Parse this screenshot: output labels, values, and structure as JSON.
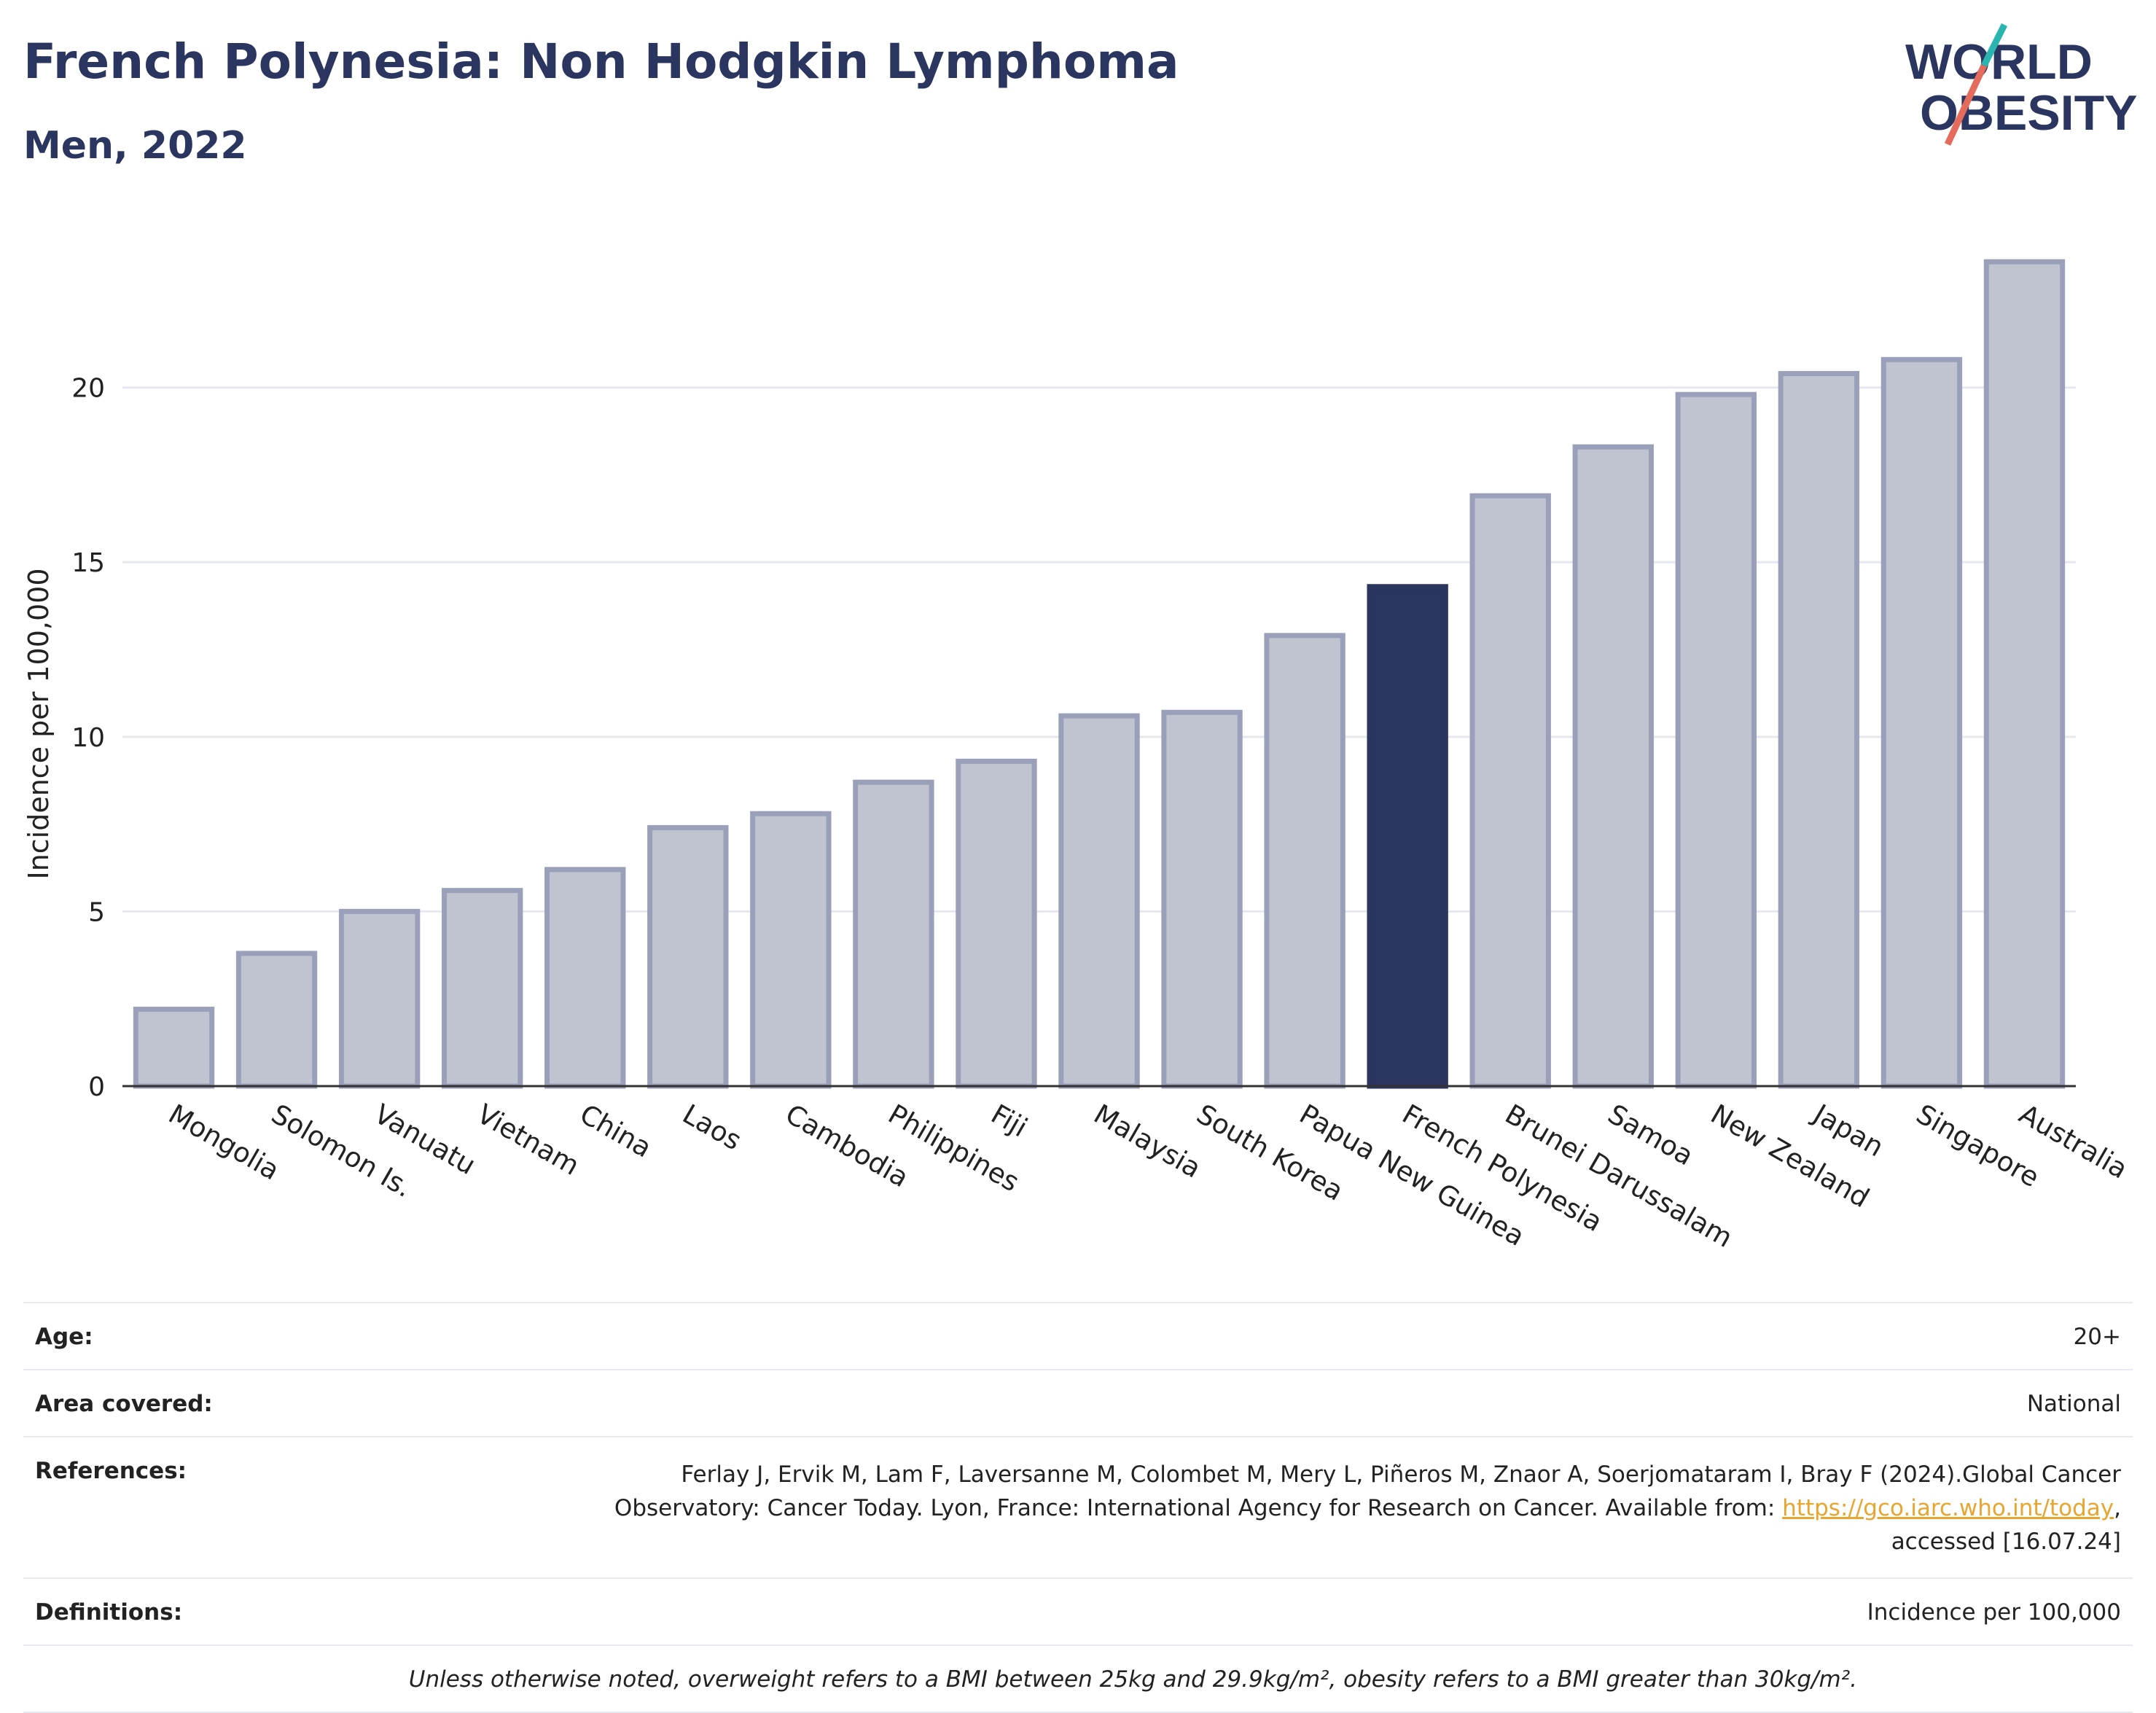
{
  "header": {
    "title": "French Polynesia: Non Hodgkin Lymphoma",
    "subtitle": "Men, 2022"
  },
  "logo": {
    "line1": "WORLD",
    "line2": "OBESITY",
    "icon": "world-obesity-logo"
  },
  "colors": {
    "bar": "#c0c4d1",
    "bar_border": "#9aa0b9",
    "highlight": "#2a3560",
    "grid": "#e6e8ef",
    "link": "#e8a530"
  },
  "chart_data": {
    "type": "bar",
    "ylabel": "Incidence per 100,000",
    "xlabel": "",
    "ylim": [
      0,
      24.5
    ],
    "yticks": [
      0,
      5,
      10,
      15,
      20
    ],
    "grid": true,
    "highlight": "French Polynesia",
    "categories": [
      "Mongolia",
      "Solomon Is.",
      "Vanuatu",
      "Vietnam",
      "China",
      "Laos",
      "Cambodia",
      "Philippines",
      "Fiji",
      "Malaysia",
      "South Korea",
      "Papua New Guinea",
      "French Polynesia",
      "Brunei Darussalam",
      "Samoa",
      "New Zealand",
      "Japan",
      "Singapore",
      "Australia"
    ],
    "values": [
      2.2,
      3.8,
      5.0,
      5.6,
      6.2,
      7.4,
      7.8,
      8.7,
      9.3,
      10.6,
      10.7,
      12.9,
      14.3,
      16.9,
      18.3,
      19.8,
      20.4,
      20.8,
      23.6
    ]
  },
  "info": {
    "age_label": "Age:",
    "age_value": "20+",
    "area_label": "Area covered:",
    "area_value": "National",
    "ref_label": "References:",
    "ref_line1": "Ferlay J, Ervik M, Lam F, Laversanne M, Colombet M, Mery L, Piñeros M, Znaor A, Soerjomataram I, Bray F (2024).Global Cancer",
    "ref_line2_pre": "Observatory: Cancer Today. Lyon, France: International Agency for Research on Cancer. Available from: ",
    "ref_link": "https://gco.iarc.who.int/today",
    "ref_line2_post": ",",
    "ref_line3": "accessed [16.07.24]",
    "def_label": "Definitions:",
    "def_value": "Incidence per 100,000",
    "note": "Unless otherwise noted, overweight refers to a BMI between 25kg and 29.9kg/m², obesity refers to a BMI greater than 30kg/m²."
  }
}
